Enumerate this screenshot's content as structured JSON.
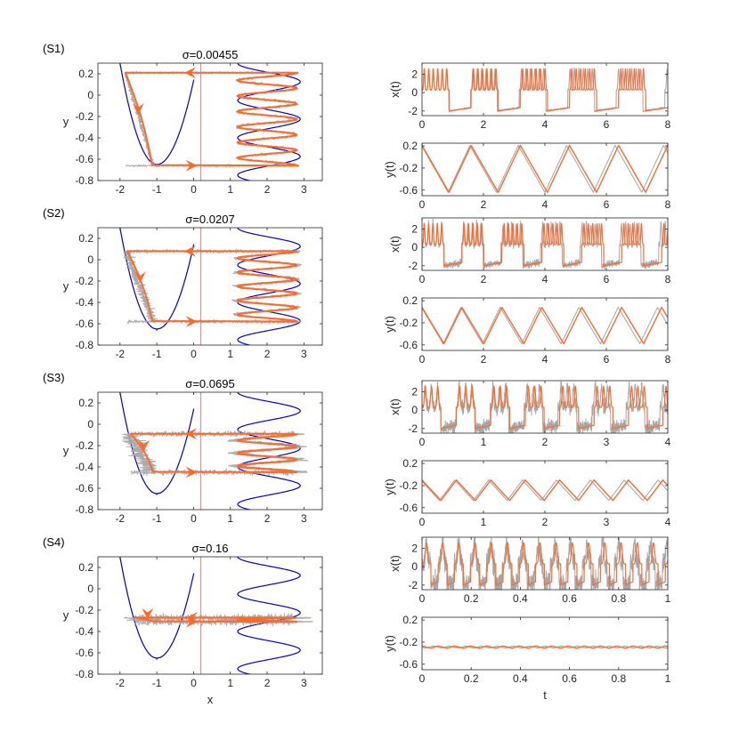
{
  "figure": {
    "colors": {
      "orbit": "#ff6a2b",
      "noise": "#a6a6a6",
      "nullcline": "#0000cc",
      "threshold": "#ff5555",
      "axis": "#262626"
    }
  },
  "chart_data": [
    {
      "id": "S1-phase",
      "label": "(S1)",
      "type": "line",
      "title": "σ=0.00455",
      "sigma": 0.00455,
      "xlabel": "",
      "ylabel": "y",
      "xlim": [
        -2.6,
        3.5
      ],
      "ylim": [
        -0.8,
        0.3
      ],
      "xticks": [
        -2,
        -1,
        0,
        1,
        2,
        3
      ],
      "yticks": [
        0.2,
        0,
        -0.2,
        -0.4,
        -0.6,
        -0.8
      ],
      "xtick_labels": [
        "-2",
        "-1",
        "0",
        "1",
        "2",
        "3"
      ],
      "ytick_labels": [
        "0.2",
        "0",
        "-0.2",
        "-0.4",
        "-0.6",
        "-0.8"
      ],
      "threshold_x": 0.2,
      "orbit": {
        "y_top": 0.21,
        "y_bottom": -0.66,
        "x_left": -1.85,
        "x_right": 2.85,
        "bursts": 6,
        "noise_spread": 0.1
      }
    },
    {
      "id": "S1-x",
      "type": "line",
      "xlabel": "",
      "ylabel": "x(t)",
      "xlim": [
        0,
        8
      ],
      "ylim": [
        -2.5,
        3.2
      ],
      "xticks": [
        0,
        2,
        4,
        6,
        8
      ],
      "xtick_labels": [
        "0",
        "2",
        "4",
        "6",
        "8"
      ],
      "yticks": [
        2,
        0,
        -2
      ],
      "ytick_labels": [
        "2",
        "0",
        "-2"
      ],
      "period": 1.6,
      "spikes_per_burst": 6,
      "noise": 0.06
    },
    {
      "id": "S1-y",
      "type": "line",
      "xlabel": "",
      "ylabel": "y(t)",
      "xlim": [
        0,
        8
      ],
      "ylim": [
        -0.7,
        0.25
      ],
      "xticks": [
        0,
        2,
        4,
        6,
        8
      ],
      "xtick_labels": [
        "0",
        "2",
        "4",
        "6",
        "8"
      ],
      "yticks": [
        0.2,
        -0.2,
        -0.6
      ],
      "ytick_labels": [
        "0.2",
        "-0.2",
        "-0.6"
      ],
      "period": 1.6,
      "y_min": -0.64,
      "y_max": 0.21
    },
    {
      "id": "S2-phase",
      "label": "(S2)",
      "type": "line",
      "title": "σ=0.0207",
      "sigma": 0.0207,
      "xlabel": "",
      "ylabel": "y",
      "xlim": [
        -2.6,
        3.5
      ],
      "ylim": [
        -0.8,
        0.3
      ],
      "xticks": [
        -2,
        -1,
        0,
        1,
        2,
        3
      ],
      "yticks": [
        0.2,
        0,
        -0.2,
        -0.4,
        -0.6,
        -0.8
      ],
      "xtick_labels": [
        "-2",
        "-1",
        "0",
        "1",
        "2",
        "3"
      ],
      "ytick_labels": [
        "0.2",
        "0",
        "-0.2",
        "-0.4",
        "-0.6",
        "-0.8"
      ],
      "threshold_x": 0.2,
      "orbit": {
        "y_top": 0.08,
        "y_bottom": -0.58,
        "x_left": -1.8,
        "x_right": 2.8,
        "bursts": 5,
        "noise_spread": 0.28
      }
    },
    {
      "id": "S2-x",
      "type": "line",
      "xlabel": "",
      "ylabel": "x(t)",
      "xlim": [
        0,
        8
      ],
      "ylim": [
        -2.5,
        3.2
      ],
      "xticks": [
        0,
        2,
        4,
        6,
        8
      ],
      "xtick_labels": [
        "0",
        "2",
        "4",
        "6",
        "8"
      ],
      "yticks": [
        2,
        0,
        -2
      ],
      "ytick_labels": [
        "2",
        "0",
        "-2"
      ],
      "period": 1.3,
      "spikes_per_burst": 5,
      "noise": 0.25
    },
    {
      "id": "S2-y",
      "type": "line",
      "xlabel": "",
      "ylabel": "y(t)",
      "xlim": [
        0,
        8
      ],
      "ylim": [
        -0.7,
        0.25
      ],
      "xticks": [
        0,
        2,
        4,
        6,
        8
      ],
      "xtick_labels": [
        "0",
        "2",
        "4",
        "6",
        "8"
      ],
      "yticks": [
        0.2,
        -0.2,
        -0.6
      ],
      "ytick_labels": [
        "0.2",
        "-0.2",
        "-0.6"
      ],
      "period": 1.3,
      "y_min": -0.58,
      "y_max": 0.08
    },
    {
      "id": "S3-phase",
      "label": "(S3)",
      "type": "line",
      "title": "σ=0.0695",
      "sigma": 0.0695,
      "xlabel": "",
      "ylabel": "y",
      "xlim": [
        -2.6,
        3.5
      ],
      "ylim": [
        -0.8,
        0.3
      ],
      "xticks": [
        -2,
        -1,
        0,
        1,
        2,
        3
      ],
      "yticks": [
        0.2,
        0,
        -0.2,
        -0.4,
        -0.6,
        -0.8
      ],
      "xtick_labels": [
        "-2",
        "-1",
        "0",
        "1",
        "2",
        "3"
      ],
      "ytick_labels": [
        "0.2",
        "0",
        "-0.2",
        "-0.4",
        "-0.6",
        "-0.8"
      ],
      "threshold_x": 0.2,
      "orbit": {
        "y_top": -0.09,
        "y_bottom": -0.45,
        "x_left": -1.7,
        "x_right": 2.75,
        "bursts": 3,
        "noise_spread": 0.6
      }
    },
    {
      "id": "S3-x",
      "type": "line",
      "xlabel": "",
      "ylabel": "x(t)",
      "xlim": [
        0,
        4
      ],
      "ylim": [
        -2.5,
        3.2
      ],
      "xticks": [
        0,
        1,
        2,
        3,
        4
      ],
      "xtick_labels": [
        "0",
        "1",
        "2",
        "3",
        "4"
      ],
      "yticks": [
        2,
        0,
        -2
      ],
      "ytick_labels": [
        "2",
        "0",
        "-2"
      ],
      "period": 0.56,
      "spikes_per_burst": 3,
      "noise": 0.5
    },
    {
      "id": "S3-y",
      "type": "line",
      "xlabel": "",
      "ylabel": "y(t)",
      "xlim": [
        0,
        4
      ],
      "ylim": [
        -0.7,
        0.25
      ],
      "xticks": [
        0,
        1,
        2,
        3,
        4
      ],
      "xtick_labels": [
        "0",
        "1",
        "2",
        "3",
        "4"
      ],
      "yticks": [
        0.2,
        -0.2,
        -0.6
      ],
      "ytick_labels": [
        "0.2",
        "-0.2",
        "-0.6"
      ],
      "period": 0.56,
      "y_min": -0.47,
      "y_max": -0.1
    },
    {
      "id": "S4-phase",
      "label": "(S4)",
      "type": "line",
      "title": "σ=0.16",
      "sigma": 0.16,
      "xlabel": "x",
      "ylabel": "y",
      "xlim": [
        -2.6,
        3.5
      ],
      "ylim": [
        -0.8,
        0.3
      ],
      "xticks": [
        -2,
        -1,
        0,
        1,
        2,
        3
      ],
      "yticks": [
        0.2,
        0,
        -0.2,
        -0.4,
        -0.6,
        -0.8
      ],
      "xtick_labels": [
        "-2",
        "-1",
        "0",
        "1",
        "2",
        "3"
      ],
      "ytick_labels": [
        "0.2",
        "0",
        "-0.2",
        "-0.4",
        "-0.6",
        "-0.8"
      ],
      "threshold_x": 0.2,
      "orbit": {
        "y_top": -0.27,
        "y_bottom": -0.31,
        "x_left": -1.6,
        "x_right": 2.7,
        "bursts": 1,
        "noise_spread": 0.9
      }
    },
    {
      "id": "S4-x",
      "type": "line",
      "xlabel": "",
      "ylabel": "x(t)",
      "xlim": [
        0,
        1
      ],
      "ylim": [
        -2.5,
        3.2
      ],
      "xticks": [
        0,
        0.2,
        0.4,
        0.6,
        0.8,
        1
      ],
      "xtick_labels": [
        "0",
        "0.2",
        "0.4",
        "0.6",
        "0.8",
        "1"
      ],
      "yticks": [
        2,
        0,
        -2
      ],
      "ytick_labels": [
        "2",
        "0",
        "-2"
      ],
      "period": 0.066,
      "spikes_per_burst": 1,
      "noise": 0.8
    },
    {
      "id": "S4-y",
      "type": "line",
      "xlabel": "t",
      "ylabel": "y(t)",
      "xlim": [
        0,
        1
      ],
      "ylim": [
        -0.7,
        0.25
      ],
      "xticks": [
        0,
        0.2,
        0.4,
        0.6,
        0.8,
        1
      ],
      "xtick_labels": [
        "0",
        "0.2",
        "0.4",
        "0.6",
        "0.8",
        "1"
      ],
      "yticks": [
        0.2,
        -0.2,
        -0.6
      ],
      "ytick_labels": [
        "0.2",
        "-0.2",
        "-0.6"
      ],
      "period": 0.066,
      "y_min": -0.31,
      "y_max": -0.27
    }
  ]
}
